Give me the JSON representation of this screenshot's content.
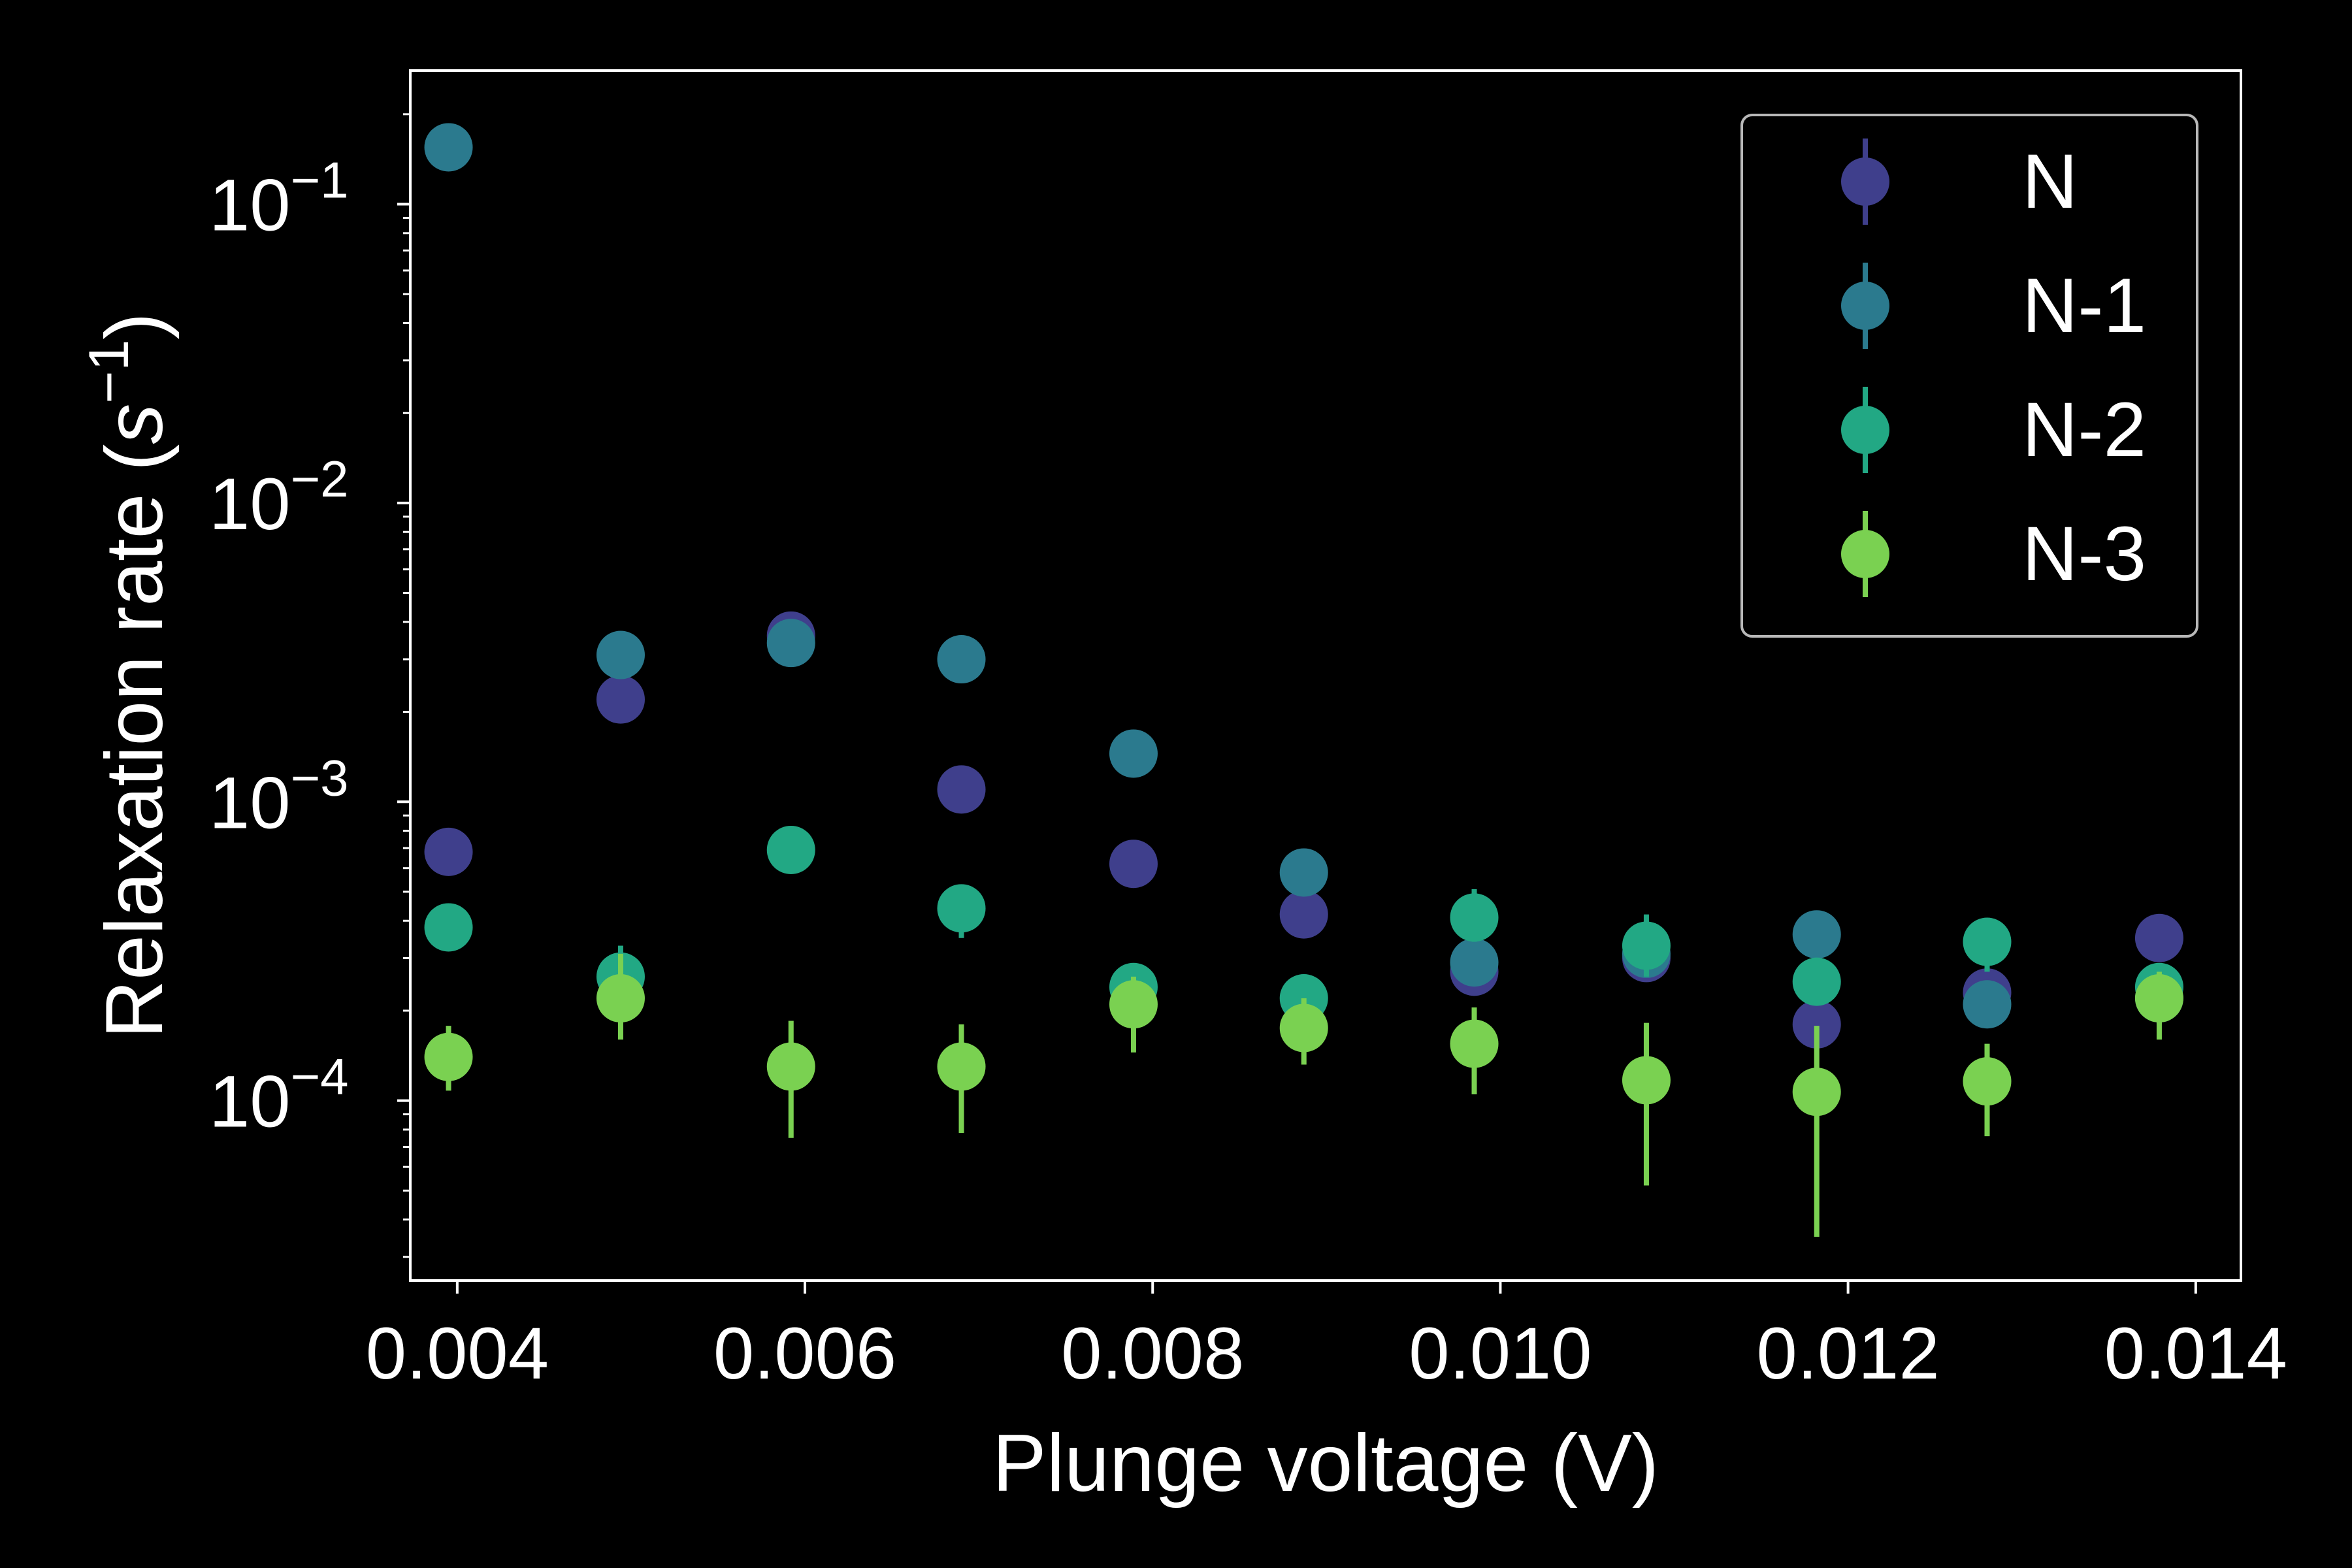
{
  "chart_data": {
    "type": "scatter",
    "title": "",
    "xlabel": "Plunge voltage (V)",
    "ylabel_main": "Relaxation rate (",
    "ylabel_unit": "s",
    "ylabel_exp": "−1",
    "ylabel_close": ")",
    "xlim": [
      0.00373,
      0.01426
    ],
    "ylim": [
      2.5e-05,
      0.28
    ],
    "yscale": "log",
    "grid": false,
    "legend_position": "top-right",
    "x_ticks": [
      {
        "value": 0.004,
        "label": "0.004"
      },
      {
        "value": 0.006,
        "label": "0.006"
      },
      {
        "value": 0.008,
        "label": "0.008"
      },
      {
        "value": 0.01,
        "label": "0.010"
      },
      {
        "value": 0.012,
        "label": "0.012"
      },
      {
        "value": 0.014,
        "label": "0.014"
      }
    ],
    "y_ticks": [
      {
        "value": 0.0001,
        "base": "10",
        "exp": "−4"
      },
      {
        "value": 0.001,
        "base": "10",
        "exp": "−3"
      },
      {
        "value": 0.01,
        "base": "10",
        "exp": "−2"
      },
      {
        "value": 0.1,
        "base": "10",
        "exp": "−1"
      }
    ],
    "series": [
      {
        "name": "N",
        "color": "#3f3f8c",
        "points": [
          {
            "x": 0.00395,
            "y": 0.00068
          },
          {
            "x": 0.00494,
            "y": 0.0022
          },
          {
            "x": 0.00592,
            "y": 0.0036
          },
          {
            "x": 0.0069,
            "y": 0.0011
          },
          {
            "x": 0.00789,
            "y": 0.00062
          },
          {
            "x": 0.00887,
            "y": 0.00042
          },
          {
            "x": 0.00985,
            "y": 0.00027,
            "yerr": [
              0.00024,
              0.0003
            ]
          },
          {
            "x": 0.01084,
            "y": 0.0003,
            "yerr": [
              0.00027,
              0.00033
            ]
          },
          {
            "x": 0.01182,
            "y": 0.00018,
            "yerr": [
              0.00016,
              0.0002
            ]
          },
          {
            "x": 0.0128,
            "y": 0.00023,
            "yerr": [
              0.0002,
              0.00026
            ]
          },
          {
            "x": 0.01379,
            "y": 0.00035
          }
        ]
      },
      {
        "name": "N-1",
        "color": "#2b7a8e",
        "points": [
          {
            "x": 0.00395,
            "y": 0.155,
            "yerr": [
              0.135,
              0.175
            ]
          },
          {
            "x": 0.00494,
            "y": 0.0031
          },
          {
            "x": 0.00592,
            "y": 0.0034
          },
          {
            "x": 0.0069,
            "y": 0.003
          },
          {
            "x": 0.00789,
            "y": 0.00145
          },
          {
            "x": 0.00887,
            "y": 0.00058
          },
          {
            "x": 0.00985,
            "y": 0.00029,
            "yerr": [
              0.00025,
              0.00034
            ]
          },
          {
            "x": 0.01084,
            "y": 0.00031,
            "yerr": [
              0.00026,
              0.00036
            ]
          },
          {
            "x": 0.01182,
            "y": 0.00036,
            "yerr": [
              0.00031,
              0.00041
            ]
          },
          {
            "x": 0.0128,
            "y": 0.00021,
            "yerr": [
              0.000175,
              0.00025
            ]
          },
          {
            "x": 0.01379,
            "y": 0.00022,
            "yerr": [
              0.00018,
              0.00026
            ]
          }
        ]
      },
      {
        "name": "N-2",
        "color": "#22a884",
        "points": [
          {
            "x": 0.00395,
            "y": 0.00038
          },
          {
            "x": 0.00494,
            "y": 0.00026,
            "yerr": [
              0.00021,
              0.00033
            ]
          },
          {
            "x": 0.00592,
            "y": 0.00069
          },
          {
            "x": 0.0069,
            "y": 0.00044,
            "yerr": [
              0.00035,
              0.00052
            ]
          },
          {
            "x": 0.00789,
            "y": 0.00024
          },
          {
            "x": 0.00887,
            "y": 0.00022
          },
          {
            "x": 0.00985,
            "y": 0.00041,
            "yerr": [
              0.00034,
              0.00051
            ]
          },
          {
            "x": 0.01084,
            "y": 0.00033,
            "yerr": [
              0.00026,
              0.00042
            ]
          },
          {
            "x": 0.01182,
            "y": 0.00025
          },
          {
            "x": 0.0128,
            "y": 0.00034,
            "yerr": [
              0.00027,
              0.0004
            ]
          },
          {
            "x": 0.01379,
            "y": 0.00024
          }
        ]
      },
      {
        "name": "N-3",
        "color": "#7ad151",
        "points": [
          {
            "x": 0.00395,
            "y": 0.00014,
            "yerr": [
              0.000108,
              0.000178
            ]
          },
          {
            "x": 0.00494,
            "y": 0.00022,
            "yerr": [
              0.00016,
              0.00031
            ]
          },
          {
            "x": 0.00592,
            "y": 0.00013,
            "yerr": [
              7.5e-05,
              0.000185
            ]
          },
          {
            "x": 0.0069,
            "y": 0.00013,
            "yerr": [
              7.8e-05,
              0.00018
            ]
          },
          {
            "x": 0.00789,
            "y": 0.00021,
            "yerr": [
              0.000145,
              0.00026
            ]
          },
          {
            "x": 0.00887,
            "y": 0.000175,
            "yerr": [
              0.000132,
              0.00022
            ]
          },
          {
            "x": 0.00985,
            "y": 0.000155,
            "yerr": [
              0.000105,
              0.000205
            ]
          },
          {
            "x": 0.01084,
            "y": 0.000117,
            "yerr": [
              5.2e-05,
              0.000182
            ]
          },
          {
            "x": 0.01182,
            "y": 0.000107,
            "yerr": [
              3.5e-05,
              0.000178
            ]
          },
          {
            "x": 0.0128,
            "y": 0.000116,
            "yerr": [
              7.6e-05,
              0.000155
            ]
          },
          {
            "x": 0.01379,
            "y": 0.00022,
            "yerr": [
              0.00016,
              0.00027
            ]
          }
        ]
      }
    ]
  }
}
